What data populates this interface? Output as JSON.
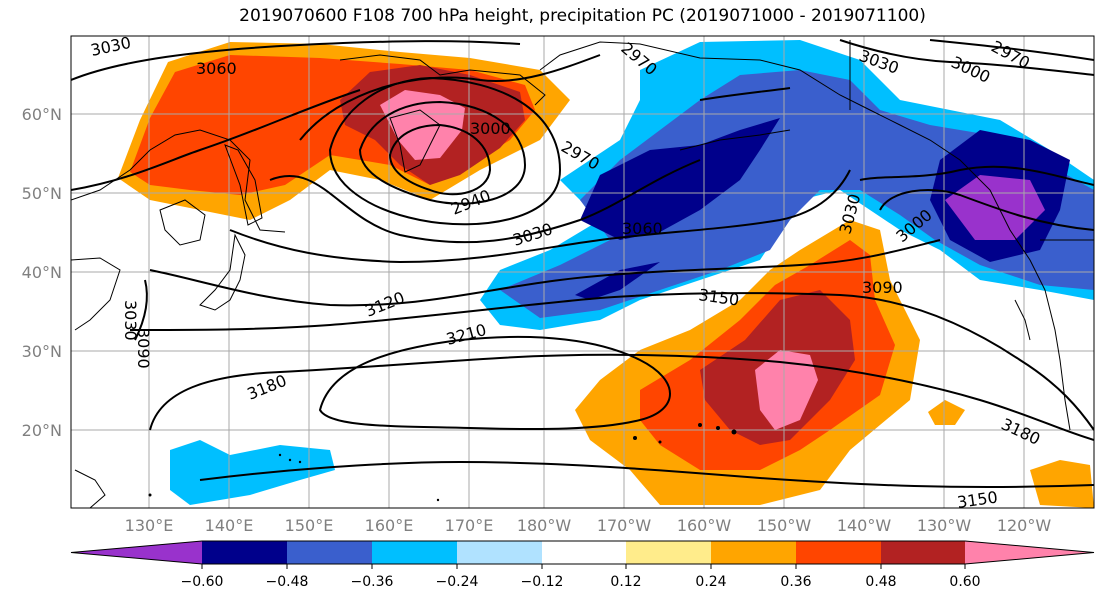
{
  "title": "2019070600 F108 700 hPa height, precipitation PC (2019071000 - 2019071100)",
  "lat_labels": [
    "60°N",
    "50°N",
    "40°N",
    "30°N",
    "20°N"
  ],
  "lon_labels": [
    "130°E",
    "140°E",
    "150°E",
    "160°E",
    "170°E",
    "180°W",
    "170°W",
    "160°W",
    "150°W",
    "140°W",
    "130°W",
    "120°W"
  ],
  "colorbar": {
    "ticks": [
      "−0.60",
      "−0.48",
      "−0.36",
      "−0.24",
      "−0.12",
      "0.12",
      "0.24",
      "0.36",
      "0.48",
      "0.60"
    ],
    "colors": [
      "#9932cc",
      "#00008b",
      "#3a5fcd",
      "#00bfff",
      "#b0e2ff",
      "#ffffff",
      "#ffec8b",
      "#ffa500",
      "#ff4500",
      "#b22222",
      "#ff82ab"
    ]
  },
  "contour_labels": [
    "3030",
    "3060",
    "3000",
    "2970",
    "2940",
    "3030",
    "3060",
    "3120",
    "3210",
    "3180",
    "3150",
    "3090",
    "3030",
    "3000",
    "3030",
    "3000",
    "2970",
    "3180",
    "3150",
    "3090",
    "3030",
    "2970",
    "3060"
  ]
}
